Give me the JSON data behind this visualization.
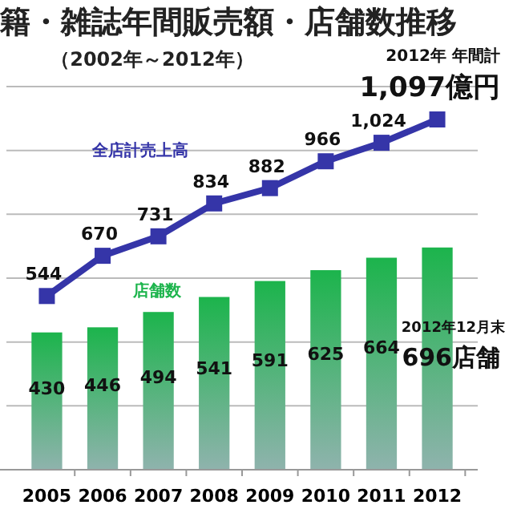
{
  "chart_data": {
    "type": "bar",
    "title": "籍・雑誌年間販売額・店舗数推移",
    "subtitle": "（2002年～2012年）",
    "categories": [
      "2005",
      "2006",
      "2007",
      "2008",
      "2009",
      "2010",
      "2011",
      "2012"
    ],
    "series": [
      {
        "name": "店舗数",
        "color": "#1cb44c",
        "values": [
          430,
          446,
          494,
          541,
          591,
          625,
          664,
          696
        ],
        "value_labels": [
          "430",
          "446",
          "494",
          "541",
          "591",
          "625",
          "664",
          null
        ]
      },
      {
        "name": "全店計売上高",
        "type": "line",
        "color": "#3535a8",
        "values": [
          544,
          670,
          731,
          834,
          882,
          966,
          1024,
          1097
        ],
        "value_labels": [
          "544",
          "670",
          "731",
          "834",
          "882",
          "966",
          "1,024",
          null
        ]
      }
    ],
    "annotations": [
      "2012年 年間計",
      "1,097億円",
      "2012年12月末",
      "696店舗"
    ],
    "ylim": [
      0,
      1200
    ],
    "yticks": [
      {
        "value": 200,
        "label": null
      },
      {
        "value": 400,
        "label": null
      },
      {
        "value": 600,
        "label": null
      },
      {
        "value": 800,
        "label": null
      },
      {
        "value": 1000,
        "label": null
      },
      {
        "value": 1200,
        "label": null
      }
    ],
    "grid": "y",
    "tick_labels": "x",
    "legend": false,
    "marker": "square",
    "line_style": "solid",
    "data_labels": false
  }
}
